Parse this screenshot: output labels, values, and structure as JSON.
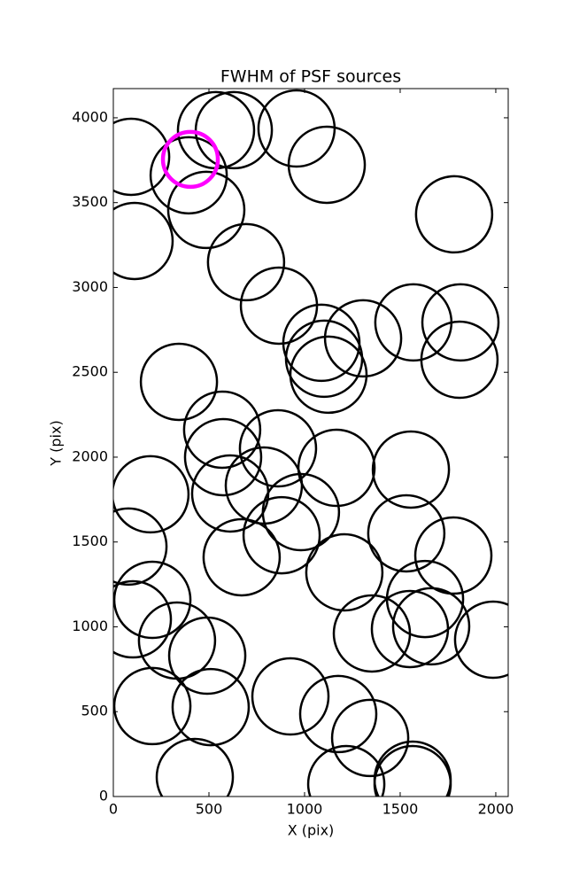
{
  "chart_data": {
    "type": "scatter",
    "title": "FWHM of PSF sources",
    "x_label": "X (pix)",
    "y_label": "Y (pix)",
    "xlim": [
      0,
      2065
    ],
    "ylim": [
      0,
      4172
    ],
    "xticks": [
      0,
      500,
      1000,
      1500,
      2000
    ],
    "yticks": [
      0,
      500,
      1000,
      1500,
      2000,
      2500,
      3000,
      3500,
      4000
    ],
    "series": [
      {
        "color": "#000000",
        "x": [
          93,
          537,
          630,
          958,
          1116,
          394,
          486,
          1782,
          111,
          694,
          866,
          1088,
          1102,
          1306,
          1569,
          1815,
          1810,
          1125,
          343,
          569,
          861,
          574,
          1167,
          1556,
          194,
          611,
          787,
          981,
          79,
          880,
          1532,
          671,
          1778,
          1208,
          204,
          1630,
          102,
          333,
          1352,
          1551,
          1662,
          1986,
          491,
          204,
          509,
          926,
          1176,
          1343,
          426,
          1218,
          1565,
          1565
        ],
        "y": [
          3770,
          3927,
          3927,
          3937,
          3723,
          3661,
          3457,
          3431,
          3274,
          3149,
          2893,
          2674,
          2580,
          2700,
          2794,
          2794,
          2574,
          2486,
          2444,
          2162,
          2052,
          2000,
          1937,
          1927,
          1781,
          1786,
          1833,
          1676,
          1473,
          1540,
          1551,
          1410,
          1420,
          1321,
          1159,
          1164,
          1044,
          919,
          961,
          987,
          1003,
          924,
          830,
          533,
          527,
          590,
          486,
          345,
          115,
          73,
          99,
          73
        ]
      },
      {
        "color": "#ff00ff",
        "x": [
          403
        ],
        "y": [
          3755
        ]
      }
    ]
  }
}
